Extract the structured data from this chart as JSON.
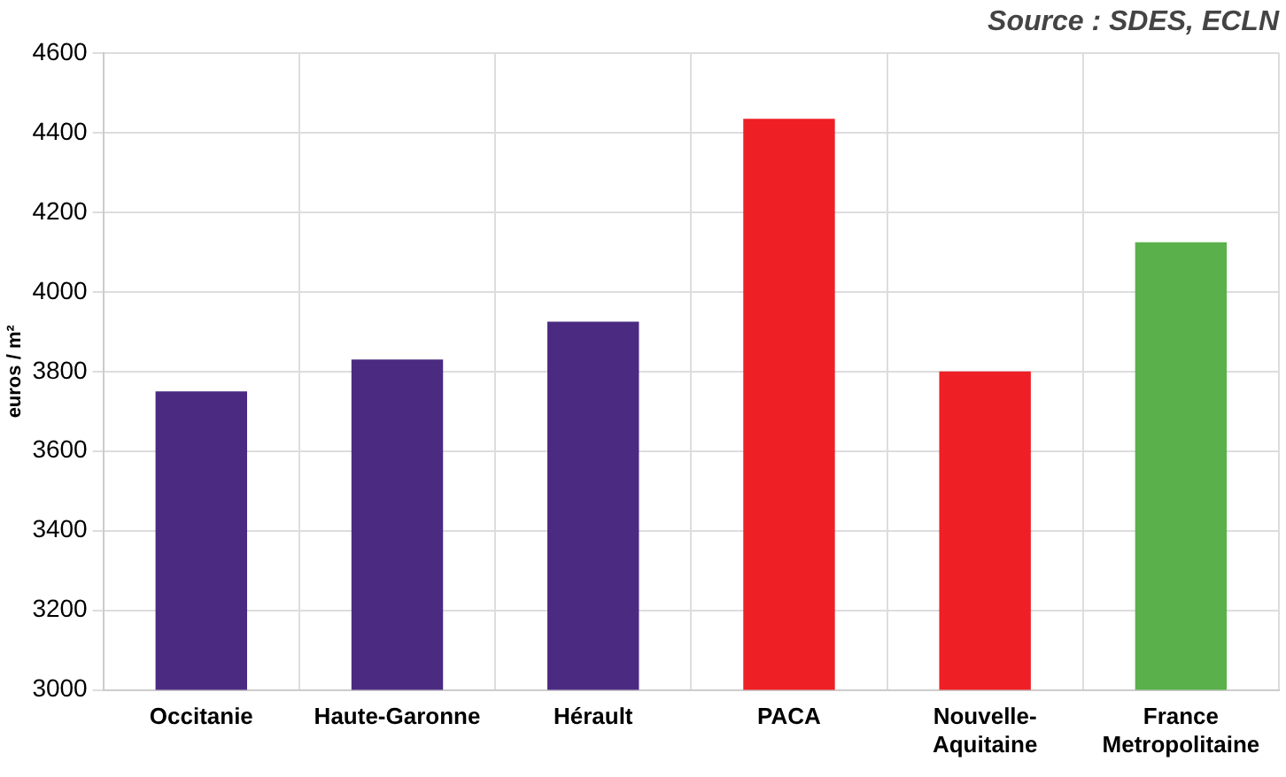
{
  "chart_data": {
    "type": "bar",
    "ylabel": "euros / m²",
    "annotations": [
      "Source : SDES, ECLN"
    ],
    "categories": [
      "Occitanie",
      "Haute-Garonne",
      "Hérault",
      "PACA",
      "Nouvelle-Aquitaine",
      "France Metropolitaine"
    ],
    "values": [
      3750,
      3830,
      3925,
      4435,
      3800,
      4125
    ],
    "colors": [
      "#4b2a82",
      "#4b2a82",
      "#4b2a82",
      "#ee1f25",
      "#ee1f25",
      "#5ab04a"
    ],
    "ylim": [
      3000,
      4600
    ],
    "yticks": [
      3000,
      3200,
      3400,
      3600,
      3800,
      4000,
      4200,
      4400,
      4600
    ],
    "grid": true,
    "legend": false
  }
}
